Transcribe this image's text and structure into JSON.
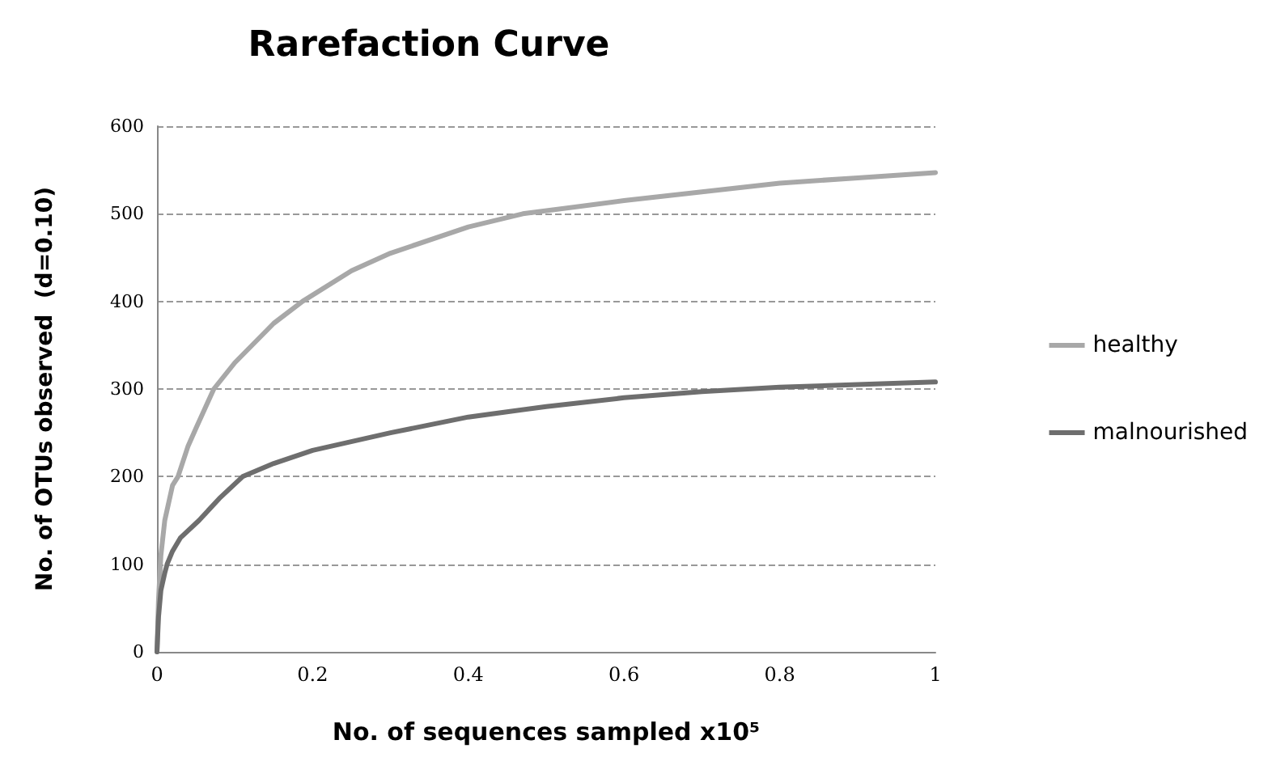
{
  "chart_data": {
    "type": "line",
    "title": "Rarefaction Curve",
    "xlabel": "No. of sequences sampled x10⁵",
    "ylabel": "No. of OTUs observed  (d=0.10)",
    "xlim": [
      0,
      1
    ],
    "xticks": [
      0,
      0.2,
      0.4,
      0.6,
      0.8,
      1
    ],
    "ylim": [
      0,
      600
    ],
    "yticks": [
      0,
      100,
      200,
      300,
      400,
      500,
      600
    ],
    "grid": "y",
    "legend": "right",
    "marker": "none",
    "line_style": "solid",
    "series": [
      {
        "name": "healthy",
        "color": "#a8a8a8",
        "x": [
          0,
          0.002,
          0.005,
          0.01,
          0.02,
          0.027,
          0.04,
          0.05,
          0.073,
          0.1,
          0.15,
          0.187,
          0.25,
          0.3,
          0.4,
          0.47,
          0.6,
          0.7,
          0.8,
          0.9,
          1
        ],
        "values": [
          0,
          60,
          110,
          150,
          190,
          200,
          235,
          255,
          300,
          330,
          375,
          400,
          435,
          455,
          485,
          500,
          515,
          525,
          535,
          541,
          547
        ]
      },
      {
        "name": "malnourished",
        "color": "#6e6e6e",
        "x": [
          0,
          0.002,
          0.005,
          0.01,
          0.013,
          0.02,
          0.03,
          0.054,
          0.08,
          0.11,
          0.15,
          0.2,
          0.3,
          0.4,
          0.5,
          0.6,
          0.7,
          0.8,
          0.9,
          1
        ],
        "values": [
          0,
          40,
          70,
          90,
          100,
          115,
          130,
          150,
          175,
          200,
          215,
          230,
          250,
          268,
          280,
          290,
          297,
          302,
          305,
          308
        ]
      }
    ]
  }
}
